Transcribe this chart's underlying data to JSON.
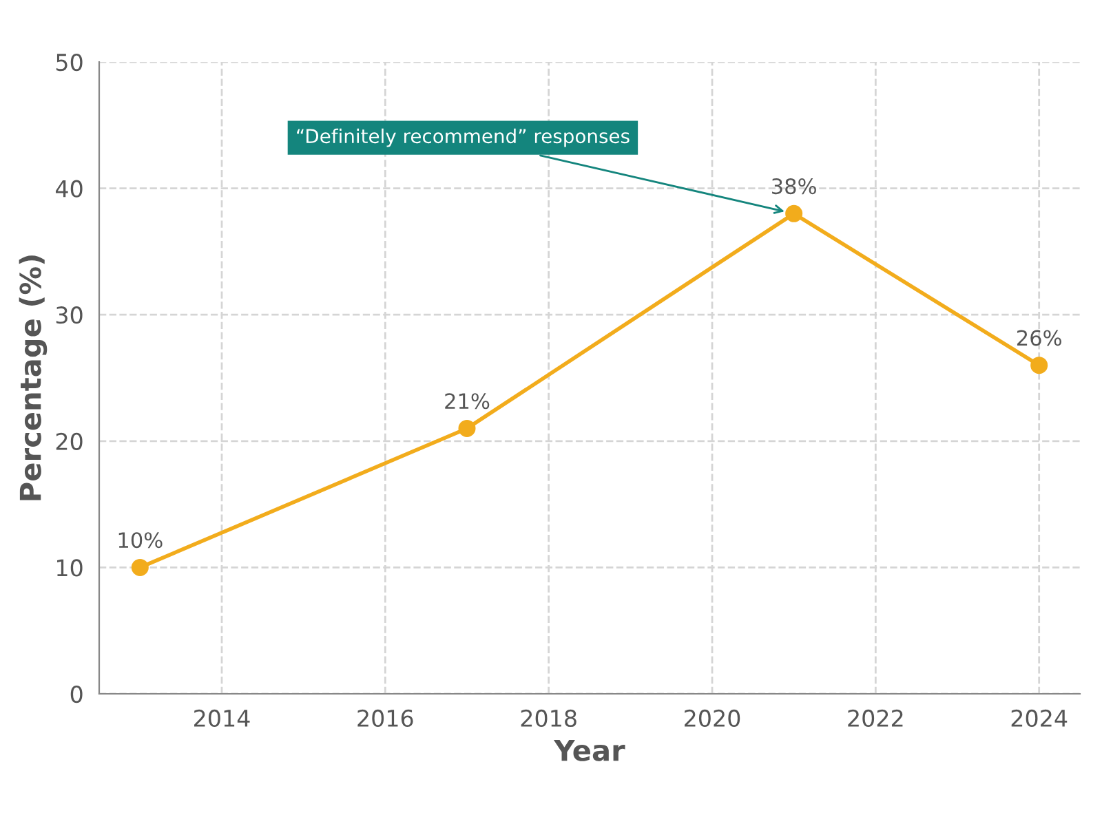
{
  "chart_data": {
    "type": "line",
    "xlabel": "Year",
    "ylabel": "Percentage (%)",
    "x": [
      2013,
      2017,
      2021,
      2024
    ],
    "series": [
      {
        "color": "#f2ac1c",
        "values": [
          10,
          21,
          38,
          26
        ],
        "value_labels": [
          "10%",
          "21%",
          "38%",
          "26%"
        ]
      }
    ],
    "xlim": [
      2012.5,
      2024.5
    ],
    "xticks": [
      2014,
      2016,
      2018,
      2020,
      2022,
      2024
    ],
    "ylim": [
      0,
      50
    ],
    "yticks": [
      0,
      10,
      20,
      30,
      40,
      50
    ],
    "grid": true,
    "marker": "circle",
    "line_style": "solid",
    "annotations": [
      {
        "text": "“Definitely recommend” responses",
        "x": 2021,
        "y": 38
      }
    ]
  }
}
